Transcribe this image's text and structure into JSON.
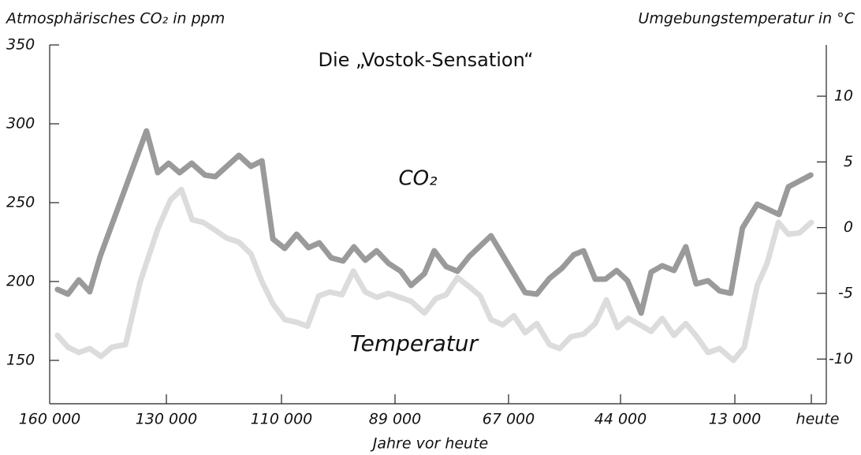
{
  "chart_data": {
    "type": "line",
    "title": "Die „Vostok-Sensation“",
    "ylabel": "Atmosphärisches CO₂ in ppm",
    "y2label": "Umgebungstemperatur in °C",
    "xlabel": "Jahre vor heute",
    "annotations": [
      "CO₂",
      "Temperatur"
    ],
    "xlim": [
      160000,
      -2500
    ],
    "xticks": [
      {
        "value": 160000,
        "label": "160 000"
      },
      {
        "value": 130000,
        "label": "130 000"
      },
      {
        "value": 110000,
        "label": "110 000"
      },
      {
        "value": 89000,
        "label": "89 000"
      },
      {
        "value": 67000,
        "label": "67 000"
      },
      {
        "value": 44000,
        "label": "44 000"
      },
      {
        "value": 13000,
        "label": "13 000"
      },
      {
        "value": 0,
        "label": "heute"
      }
    ],
    "ylim": [
      122.5,
      350
    ],
    "yticks": [
      150,
      200,
      250,
      300,
      350
    ],
    "y2lim": [
      -13.4,
      13.9
    ],
    "y2ticks": [
      -10,
      -5,
      0,
      5,
      10
    ],
    "series": [
      {
        "name": "CO₂",
        "color": "#9a9a9a",
        "x": [
          158000,
          155300,
          152500,
          149700,
          147000,
          135100,
          132200,
          129600,
          127700,
          125600,
          123300,
          121500,
          117400,
          115300,
          113400,
          111500,
          109400,
          107200,
          105000,
          103000,
          100800,
          98600,
          96600,
          94500,
          92400,
          90200,
          87900,
          85900,
          83300,
          81400,
          79100,
          76900,
          74600,
          70400,
          63600,
          61200,
          58600,
          56000,
          53600,
          51600,
          49200,
          47100,
          44800,
          42100,
          38400,
          35700,
          32700,
          29500,
          26300,
          23500,
          20300,
          17100,
          14100,
          11700,
          9200,
          5500,
          3900,
          100
        ],
        "values": [
          195,
          192,
          201,
          193.5,
          216,
          295.5,
          269,
          275,
          269,
          275,
          267.5,
          266.5,
          280,
          273,
          276.5,
          227,
          221,
          230,
          221.5,
          224.5,
          215,
          213,
          222,
          213.5,
          219.5,
          211.5,
          206.5,
          197.5,
          205,
          219.5,
          209.5,
          206.5,
          216,
          229,
          193,
          192,
          202,
          208.5,
          217,
          219.5,
          201.5,
          201.5,
          207,
          200.5,
          180,
          206,
          210,
          207,
          222,
          198.5,
          200.5,
          194,
          192.5,
          234,
          249,
          242.5,
          260,
          267.5
        ]
      },
      {
        "name": "Temperatur",
        "color": "#dcdcdc",
        "axis": "y2",
        "x": [
          158000,
          155300,
          152500,
          149700,
          146800,
          144000,
          140500,
          136700,
          132200,
          129300,
          127400,
          125500,
          123600,
          121500,
          119500,
          117400,
          115300,
          113400,
          111500,
          109400,
          107200,
          105200,
          103100,
          101100,
          98800,
          96700,
          94500,
          92400,
          90200,
          85900,
          83300,
          81100,
          79100,
          76900,
          74600,
          72500,
          70400,
          68100,
          65900,
          63600,
          61200,
          58600,
          56500,
          54200,
          51600,
          49200,
          46900,
          44600,
          41900,
          38700,
          35700,
          32700,
          29500,
          26300,
          23300,
          20300,
          17100,
          13400,
          11400,
          9200,
          7500,
          5600,
          3900,
          2000,
          0
        ],
        "values": [
          -8.2,
          -9.1,
          -9.5,
          -9.2,
          -9.8,
          -9.1,
          -8.9,
          -4.1,
          -0.1,
          2.1,
          2.9,
          0.6,
          0.4,
          -0.2,
          -0.8,
          -1.1,
          -2.0,
          -4.1,
          -5.8,
          -7.0,
          -7.2,
          -7.5,
          -5.2,
          -4.9,
          -5.1,
          -3.3,
          -4.9,
          -5.3,
          -5.0,
          -5.6,
          -6.5,
          -5.4,
          -5.1,
          -3.8,
          -4.5,
          -5.2,
          -7.0,
          -7.4,
          -6.7,
          -8.0,
          -7.3,
          -8.9,
          -9.2,
          -8.3,
          -8.1,
          -7.3,
          -5.5,
          -7.6,
          -6.9,
          -7.4,
          -7.9,
          -6.9,
          -8.2,
          -7.3,
          -8.3,
          -9.5,
          -9.2,
          -10.1,
          -9.1,
          -4.4,
          -2.7,
          0.4,
          -0.5,
          -0.4,
          0.4
        ]
      }
    ]
  }
}
